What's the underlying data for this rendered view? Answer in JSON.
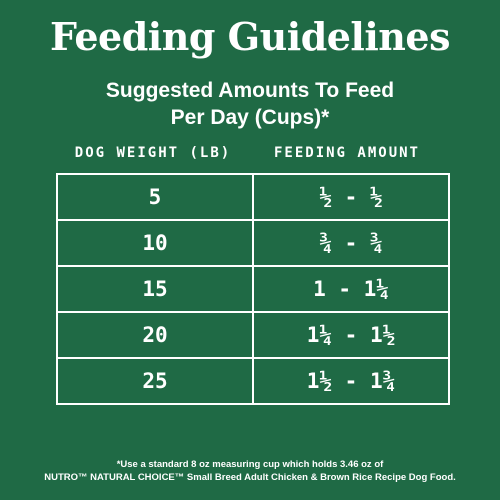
{
  "title": "Feeding Guidelines",
  "subtitle_line1": "Suggested Amounts To Feed",
  "subtitle_line2": "Per Day (Cups)*",
  "table": {
    "headers": [
      "DOG WEIGHT (LB)",
      "FEEDING AMOUNT"
    ],
    "rows": [
      {
        "weight": "5",
        "amount": "½ - ½"
      },
      {
        "weight": "10",
        "amount": "¾ - ¾"
      },
      {
        "weight": "15",
        "amount": "1 - 1¼"
      },
      {
        "weight": "20",
        "amount": "1¼ - 1½"
      },
      {
        "weight": "25",
        "amount": "1½ - 1¾"
      }
    ]
  },
  "footnote_line1": "*Use a standard 8 oz measuring cup which holds 3.46 oz of",
  "footnote_line2": "NUTRO™ NATURAL CHOICE™ Small Breed Adult Chicken & Brown Rice Recipe Dog Food.",
  "colors": {
    "background": "#1f6a45",
    "text": "#ffffff"
  }
}
